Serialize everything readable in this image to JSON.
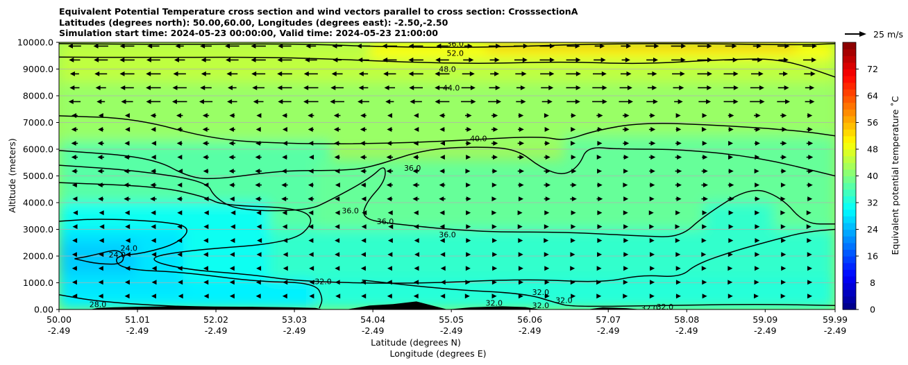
{
  "title_lines": [
    "Equivalent Potential Temperature cross section and wind vectors parallel to cross section: CrosssectionA",
    "Latitudes (degrees north): 50.00,60.00, Longitudes (degrees east): -2.50,-2.50",
    "Simulation start time: 2024-05-23 00:00:00, Valid time: 2024-05-23 21:00:00"
  ],
  "chart_data": {
    "type": "heatmap",
    "title": "Equivalent Potential Temperature cross section and wind vectors parallel to cross section: CrosssectionA",
    "ylabel": "Altitude (meters)",
    "xlabel_lines": [
      "Latitude (degrees N)",
      "Longitude (degrees E)"
    ],
    "ylim": [
      0,
      10000
    ],
    "xlim": [
      50.0,
      59.99
    ],
    "y_ticks": [
      0,
      1000,
      2000,
      3000,
      4000,
      5000,
      6000,
      7000,
      8000,
      9000,
      10000
    ],
    "y_tick_labels": [
      "0.00",
      "1000.0",
      "2000.0",
      "3000.0",
      "4000.0",
      "5000.0",
      "6000.0",
      "7000.0",
      "8000.0",
      "9000.0",
      "10000.0"
    ],
    "x_ticks": [
      50.0,
      51.01,
      52.02,
      53.03,
      54.04,
      55.05,
      56.06,
      57.07,
      58.08,
      59.09,
      59.99
    ],
    "x_tick_labels_lat": [
      "50.00",
      "51.01",
      "52.02",
      "53.03",
      "54.04",
      "55.05",
      "56.06",
      "57.07",
      "58.08",
      "59.09",
      "59.99"
    ],
    "x_tick_labels_lon": [
      "-2.49",
      "-2.49",
      "-2.49",
      "-2.49",
      "-2.49",
      "-2.49",
      "-2.49",
      "-2.49",
      "-2.49",
      "-2.49",
      "-2.49"
    ],
    "grid": "horizontal",
    "colorbar": {
      "label": "Equivalent potential temperature ˚C",
      "range": [
        0,
        80
      ],
      "ticks": [
        0,
        8,
        16,
        24,
        32,
        40,
        48,
        56,
        64,
        72
      ]
    },
    "quiver_key": "25 m/s",
    "contour_labels": [
      {
        "text": "36.0",
        "x": 55.1,
        "y": 9950
      },
      {
        "text": "52.0",
        "x": 55.1,
        "y": 9600
      },
      {
        "text": "48.0",
        "x": 55.0,
        "y": 9000
      },
      {
        "text": "44.0",
        "x": 55.05,
        "y": 8300
      },
      {
        "text": "40.0",
        "x": 55.4,
        "y": 6400
      },
      {
        "text": "36.0",
        "x": 54.55,
        "y": 5300
      },
      {
        "text": "36.0",
        "x": 53.75,
        "y": 3700
      },
      {
        "text": "36.0",
        "x": 54.2,
        "y": 3300
      },
      {
        "text": "36.0",
        "x": 55.0,
        "y": 2800
      },
      {
        "text": "24.0",
        "x": 50.9,
        "y": 2300
      },
      {
        "text": "24.0",
        "x": 50.75,
        "y": 2050
      },
      {
        "text": "32.0",
        "x": 53.4,
        "y": 1050
      },
      {
        "text": "28.0",
        "x": 50.5,
        "y": 200
      },
      {
        "text": "32.0",
        "x": 56.2,
        "y": 650
      },
      {
        "text": "32.0",
        "x": 56.2,
        "y": 150
      },
      {
        "text": "32.0",
        "x": 56.5,
        "y": 350
      },
      {
        "text": "32.0",
        "x": 57.6,
        "y": 50
      },
      {
        "text": "32.0",
        "x": 57.8,
        "y": 100
      },
      {
        "text": "32.0",
        "x": 55.6,
        "y": 250
      }
    ],
    "colors": {
      "low": "#0000b0",
      "high": "#8b0000",
      "terrain": "#000000"
    }
  }
}
